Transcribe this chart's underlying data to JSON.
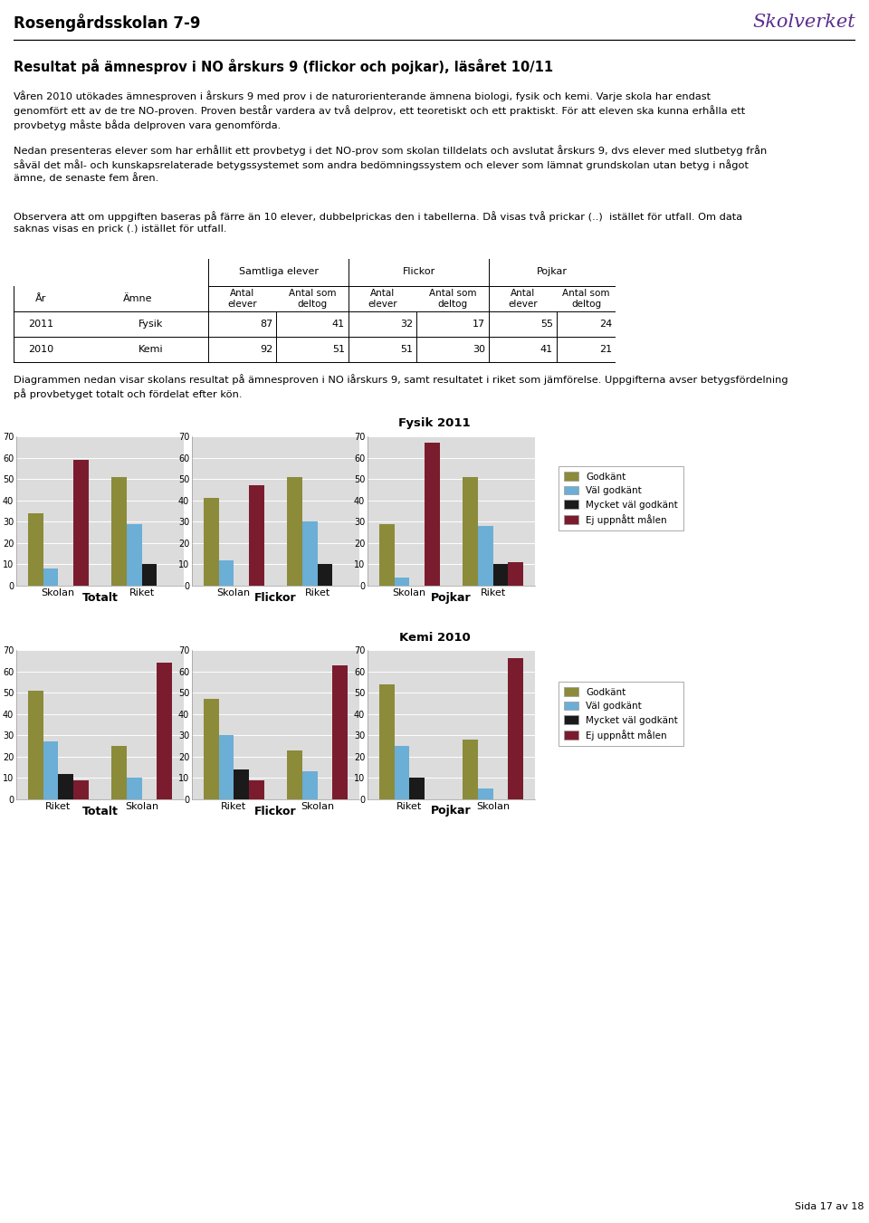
{
  "title_school": "Rosengårdsskolan 7-9",
  "title_main": "Resultat på ämnesprov i NO årskurs 9 (flickor och pojkar), läsåret 10/11",
  "body_text1": "Våren 2010 utökades ämnesproven i årskurs 9 med prov i de naturorienterande ämnena biologi, fysik och kemi. Varje skola har endast\ngenomfört ett av de tre NO-proven. Proven består vardera av två delprov, ett teoretiskt och ett praktiskt. För att eleven ska kunna erhålla ett\nprovbetyg måste båda delproven vara genomförda.",
  "body_text2": "Nedan presenteras elever som har erhållit ett provbetyg i det NO-prov som skolan tilldelats och avslutat årskurs 9, dvs elever med slutbetyg från\nsåväl det mål- och kunskapsrelaterade betygssystemet som andra bedömningssystem och elever som lämnat grundskolan utan betyg i något\nämne, de senaste fem åren.",
  "body_text3": "Observera att om uppgiften baseras på färre än 10 elever, dubbelprickas den i tabellerna. Då visas två prickar (..)  istället för utfall. Om data\nsaknas visas en prick (.) istället för utfall.",
  "body_text4": "Diagrammen nedan visar skolans resultat på ämnesproven i NO iårskurs 9, samt resultatet i riket som jämförelse. Uppgifterna avser betygsfördelning\npå provbetyget totalt och fördelat efter kön.",
  "table_data": [
    [
      "2011",
      "Fysik",
      "87",
      "41",
      "32",
      "17",
      "55",
      "24"
    ],
    [
      "2010",
      "Kemi",
      "92",
      "51",
      "51",
      "30",
      "41",
      "21"
    ]
  ],
  "chart_title1": "Fysik 2011",
  "chart_title2": "Kemi 2010",
  "fysik_totalt_skolan": [
    34,
    8,
    0,
    59
  ],
  "fysik_totalt_riket": [
    51,
    29,
    10,
    0
  ],
  "fysik_flickor_skolan": [
    41,
    12,
    0,
    47
  ],
  "fysik_flickor_riket": [
    51,
    30,
    10,
    0
  ],
  "fysik_pojkar_skolan": [
    29,
    4,
    0,
    67
  ],
  "fysik_pojkar_riket": [
    51,
    28,
    10,
    11
  ],
  "kemi_totalt_riket": [
    51,
    27,
    12,
    9
  ],
  "kemi_totalt_skolan": [
    25,
    10,
    0,
    64
  ],
  "kemi_flickor_riket": [
    47,
    30,
    14,
    9
  ],
  "kemi_flickor_skolan": [
    23,
    13,
    0,
    63
  ],
  "kemi_pojkar_riket": [
    54,
    25,
    10,
    0
  ],
  "kemi_pojkar_skolan": [
    28,
    5,
    0,
    66
  ],
  "colors": [
    "#8B8B3A",
    "#6BAED6",
    "#1a1a1a",
    "#7B1C2E"
  ],
  "legend_labels": [
    "Godkänt",
    "Väl godkänt",
    "Mycket väl godkänt",
    "Ej uppnått målen"
  ],
  "page_text": "Sida 17 av 18"
}
